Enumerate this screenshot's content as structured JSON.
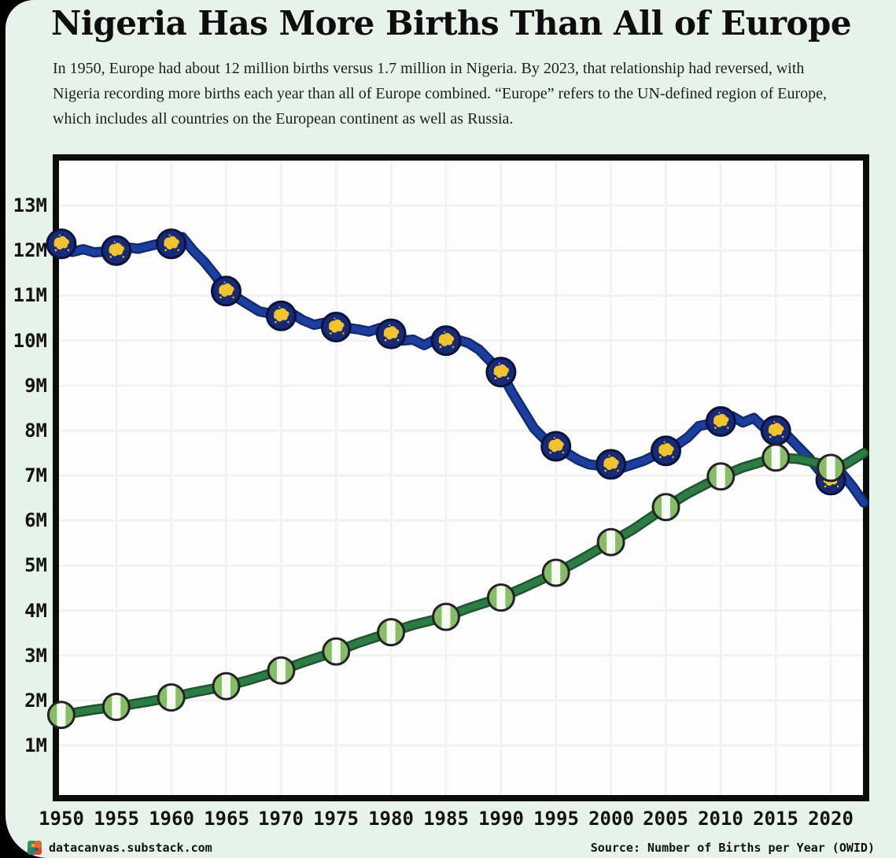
{
  "page": {
    "title": "Nigeria Has More Births Than All of Europe",
    "subtitle_lines": [
      "In 1950, Europe had about 12 million births versus 1.7 million in Nigeria. By 2023, that relationship had reversed, with",
      "Nigeria recording more births each year than all of Europe combined. “Europe” refers to the UN-defined region of Europe,",
      "which includes all countries on the European continent as well as Russia."
    ],
    "footer": {
      "site": "datacanvas.substack.com",
      "source": "Source: Number of Births per Year (OWID)"
    }
  },
  "colors": {
    "background": "#000000",
    "card": "#e7f2ea",
    "plot_background": "#fdfdfd",
    "frame": "#0c0c0c",
    "grid": "#f0f2f0",
    "text": "#131313",
    "europe_line": "#1c3e9e",
    "nigeria_line": "#2e7c45"
  },
  "chart_data": {
    "type": "line",
    "title": "Nigeria Has More Births Than All of Europe",
    "xlabel": "",
    "ylabel": "",
    "legend_position": "none",
    "grid": true,
    "units": "millions of births per year",
    "x_range": [
      1949.79,
      2022.93
    ],
    "y_range": [
      -0.1,
      14.0
    ],
    "x_ticks": [
      1950,
      1955,
      1960,
      1965,
      1970,
      1975,
      1980,
      1985,
      1990,
      1995,
      2000,
      2005,
      2010,
      2015,
      2020
    ],
    "y_ticks": [
      {
        "value": 1,
        "label": "1M"
      },
      {
        "value": 2,
        "label": "2M"
      },
      {
        "value": 3,
        "label": "3M"
      },
      {
        "value": 4,
        "label": "4M"
      },
      {
        "value": 5,
        "label": "5M"
      },
      {
        "value": 6,
        "label": "6M"
      },
      {
        "value": 7,
        "label": "7M"
      },
      {
        "value": 8,
        "label": "8M"
      },
      {
        "value": 9,
        "label": "9M"
      },
      {
        "value": 10,
        "label": "10M"
      },
      {
        "value": 11,
        "label": "11M"
      },
      {
        "value": 12,
        "label": "12M"
      },
      {
        "value": 13,
        "label": "13M"
      }
    ],
    "series": [
      {
        "name": "Europe",
        "marker_icon": "europe-map-icon",
        "line_color": "#1c3e9e",
        "line_outline": "#132b6f",
        "marker_fill": "#192a74",
        "marker_stroke": "#0a1240",
        "marker_inner": "#f2c330",
        "marker_radius": 18,
        "marker_years": [
          1950,
          1955,
          1960,
          1965,
          1970,
          1975,
          1980,
          1985,
          1990,
          1995,
          2000,
          2005,
          2010,
          2015,
          2020
        ],
        "points": [
          [
            1950,
            12.15
          ],
          [
            1951,
            11.97
          ],
          [
            1952,
            12.03
          ],
          [
            1953,
            11.96
          ],
          [
            1955,
            12.0
          ],
          [
            1956,
            12.07
          ],
          [
            1957,
            12.04
          ],
          [
            1958,
            12.1
          ],
          [
            1959,
            12.16
          ],
          [
            1960,
            12.15
          ],
          [
            1961,
            12.3
          ],
          [
            1962,
            12.0
          ],
          [
            1963,
            11.75
          ],
          [
            1964,
            11.45
          ],
          [
            1965,
            11.1
          ],
          [
            1966,
            10.95
          ],
          [
            1967,
            10.8
          ],
          [
            1968,
            10.65
          ],
          [
            1969,
            10.6
          ],
          [
            1970,
            10.55
          ],
          [
            1971,
            10.6
          ],
          [
            1972,
            10.45
          ],
          [
            1973,
            10.35
          ],
          [
            1974,
            10.4
          ],
          [
            1975,
            10.3
          ],
          [
            1976,
            10.28
          ],
          [
            1977,
            10.25
          ],
          [
            1978,
            10.2
          ],
          [
            1979,
            10.28
          ],
          [
            1980,
            10.15
          ],
          [
            1981,
            10.0
          ],
          [
            1982,
            10.02
          ],
          [
            1983,
            9.9
          ],
          [
            1984,
            10.02
          ],
          [
            1985,
            10.0
          ],
          [
            1986,
            10.02
          ],
          [
            1987,
            9.95
          ],
          [
            1988,
            9.8
          ],
          [
            1989,
            9.55
          ],
          [
            1990,
            9.3
          ],
          [
            1991,
            8.85
          ],
          [
            1992,
            8.45
          ],
          [
            1993,
            8.05
          ],
          [
            1994,
            7.8
          ],
          [
            1995,
            7.65
          ],
          [
            1996,
            7.5
          ],
          [
            1997,
            7.35
          ],
          [
            1998,
            7.25
          ],
          [
            1999,
            7.22
          ],
          [
            2000,
            7.25
          ],
          [
            2001,
            7.17
          ],
          [
            2002,
            7.25
          ],
          [
            2003,
            7.33
          ],
          [
            2004,
            7.45
          ],
          [
            2005,
            7.55
          ],
          [
            2006,
            7.68
          ],
          [
            2007,
            7.85
          ],
          [
            2008,
            8.1
          ],
          [
            2009,
            8.15
          ],
          [
            2010,
            8.2
          ],
          [
            2011,
            8.32
          ],
          [
            2012,
            8.18
          ],
          [
            2013,
            8.28
          ],
          [
            2014,
            8.05
          ],
          [
            2015,
            8.0
          ],
          [
            2016,
            7.9
          ],
          [
            2017,
            7.65
          ],
          [
            2018,
            7.4
          ],
          [
            2019,
            7.1
          ],
          [
            2020,
            6.9
          ],
          [
            2021,
            7.05
          ],
          [
            2022,
            6.75
          ],
          [
            2023,
            6.4
          ]
        ]
      },
      {
        "name": "Nigeria",
        "marker_icon": "nigeria-flag-icon",
        "line_color": "#2e7c45",
        "line_outline": "#1f5531",
        "marker_fill": "#87bc69",
        "marker_stroke": "#232323",
        "marker_inner": "#f7faf3",
        "marker_radius": 16.5,
        "marker_years": [
          1950,
          1955,
          1960,
          1965,
          1970,
          1975,
          1980,
          1985,
          1990,
          1995,
          2000,
          2005,
          2010,
          2015,
          2020
        ],
        "points": [
          [
            1950,
            1.68
          ],
          [
            1953,
            1.8
          ],
          [
            1955,
            1.86
          ],
          [
            1958,
            1.98
          ],
          [
            1960,
            2.07
          ],
          [
            1962,
            2.18
          ],
          [
            1965,
            2.32
          ],
          [
            1967,
            2.45
          ],
          [
            1970,
            2.67
          ],
          [
            1972,
            2.85
          ],
          [
            1975,
            3.09
          ],
          [
            1977,
            3.28
          ],
          [
            1980,
            3.52
          ],
          [
            1982,
            3.68
          ],
          [
            1985,
            3.86
          ],
          [
            1987,
            4.05
          ],
          [
            1990,
            4.29
          ],
          [
            1992,
            4.5
          ],
          [
            1995,
            4.84
          ],
          [
            1997,
            5.1
          ],
          [
            2000,
            5.52
          ],
          [
            2002,
            5.8
          ],
          [
            2005,
            6.3
          ],
          [
            2007,
            6.6
          ],
          [
            2010,
            6.98
          ],
          [
            2012,
            7.18
          ],
          [
            2015,
            7.4
          ],
          [
            2017,
            7.37
          ],
          [
            2019,
            7.27
          ],
          [
            2020,
            7.17
          ],
          [
            2021,
            7.2
          ],
          [
            2022,
            7.35
          ],
          [
            2023,
            7.5
          ]
        ]
      }
    ]
  }
}
